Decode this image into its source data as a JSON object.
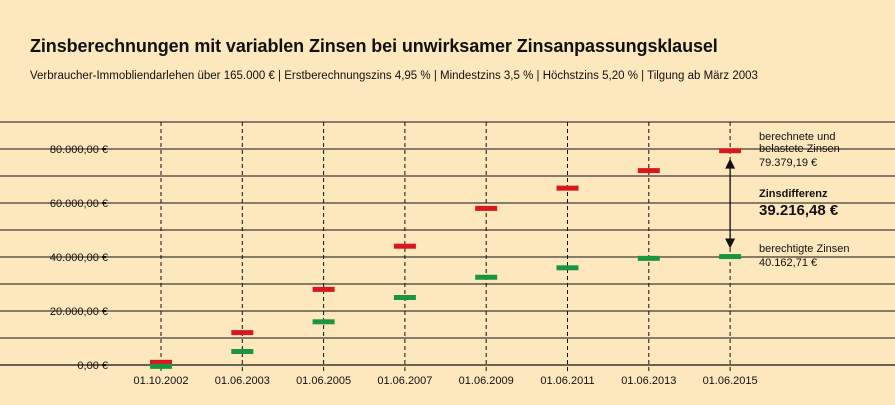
{
  "title": "Zinsberechnungen mit variablen Zinsen bei unwirksamer Zinsanpassungsklausel",
  "subtitle": "Verbraucher-Immobliendarlehen über 165.000 € | Erstberechnungszins 4,95 % | Mindestzins 3,5 % | Höchstzins 5,20 % | Tilgung ab März 2003",
  "colors": {
    "background": "#fde7bd",
    "red_series": "#d7191f",
    "green_series": "#1a9641"
  },
  "chart_data": {
    "type": "scatter",
    "categories": [
      "01.10.2002",
      "01.06.2003",
      "01.06.2005",
      "01.06.2007",
      "01.06.2009",
      "01.06.2011",
      "01.06.2013",
      "01.06.2015"
    ],
    "ylim": [
      0,
      90000
    ],
    "y_ticks": [
      0,
      20000,
      40000,
      60000,
      80000
    ],
    "y_tick_labels": [
      "0,00 €",
      "20.000,00 €",
      "40.000,00 €",
      "60.000,00 €",
      "80.000,00 €"
    ],
    "grid": true,
    "series": [
      {
        "color": "#d7191f",
        "values": [
          1000,
          12000,
          28000,
          44000,
          58000,
          65500,
          72000,
          79379.19
        ]
      },
      {
        "color": "#1a9641",
        "values": [
          -500,
          5000,
          16000,
          25000,
          32500,
          36000,
          39500,
          40162.71
        ]
      }
    ],
    "annotations": {
      "top_label_line1": "berechnete und",
      "top_label_line2": "belastete Zinsen",
      "top_value": "79.379,19 €",
      "diff_label": "Zinsdifferenz",
      "diff_value": "39.216,48 €",
      "bottom_label": "berechtigte Zinsen",
      "bottom_value": "40.162,71 €"
    }
  }
}
